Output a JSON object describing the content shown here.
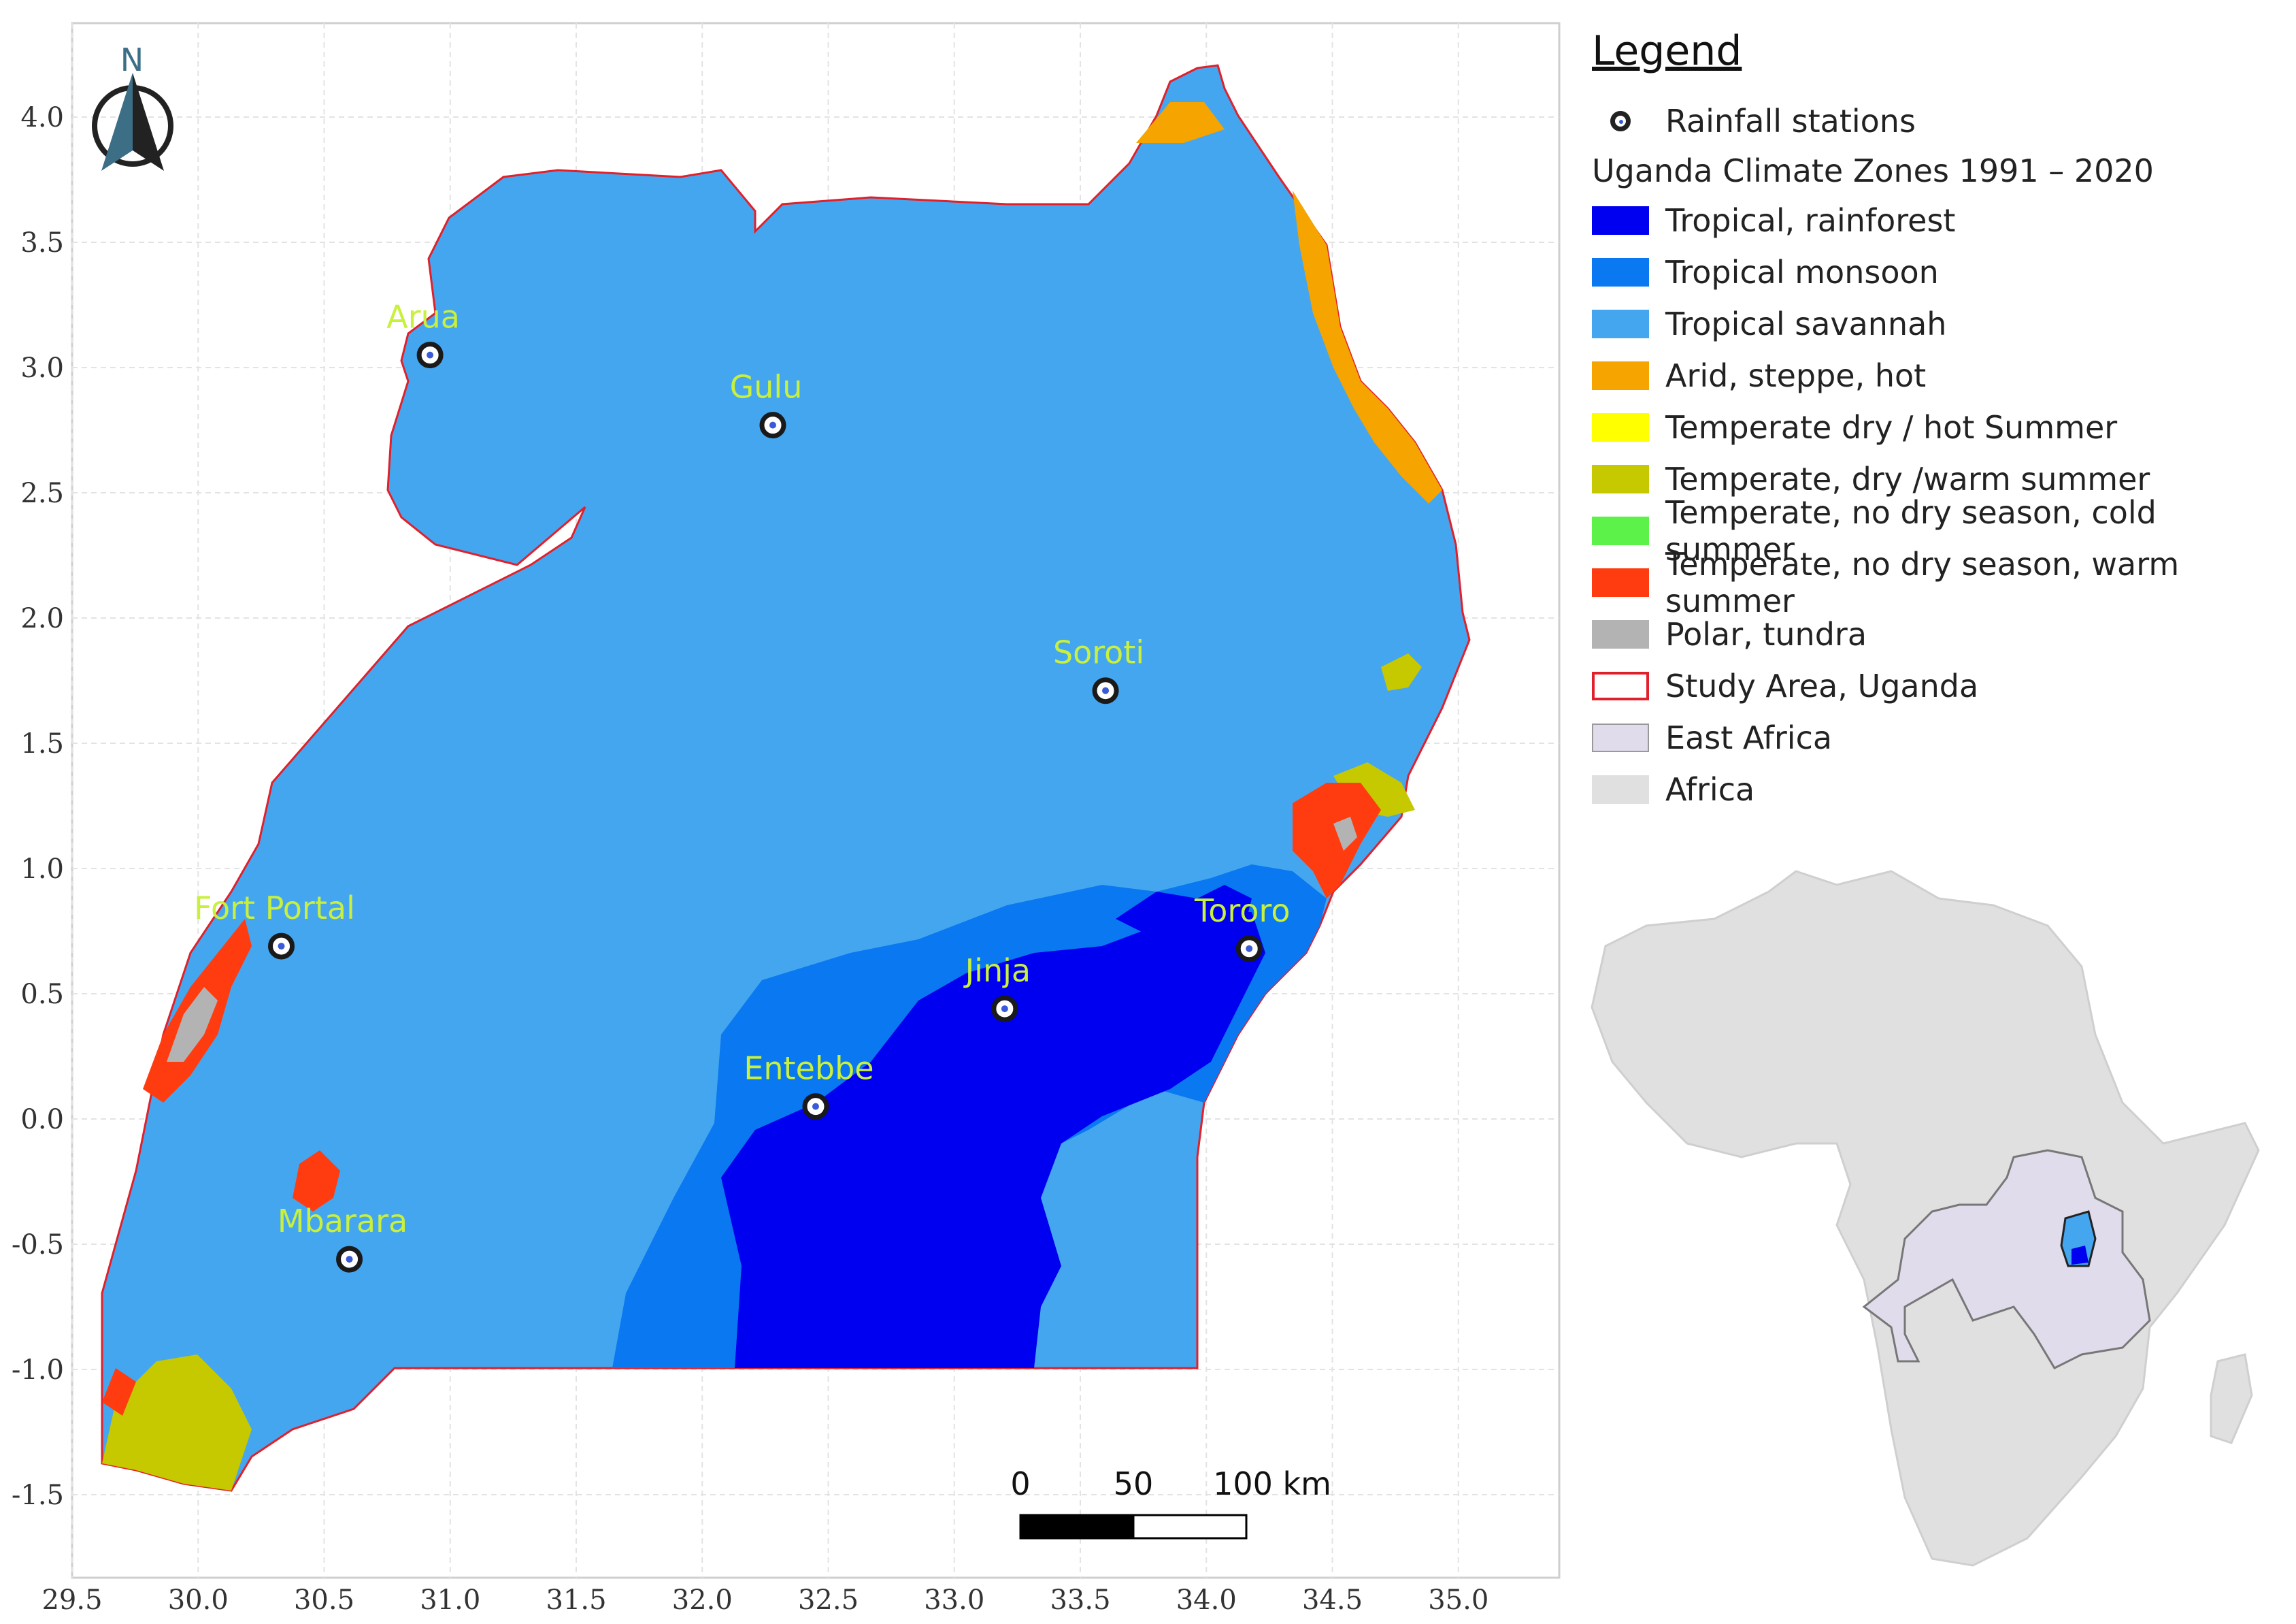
{
  "map": {
    "north_arrow_label": "N",
    "x_axis_ticks": [
      "29.5",
      "30.0",
      "30.5",
      "31.0",
      "31.5",
      "32.0",
      "32.5",
      "33.0",
      "33.5",
      "34.0",
      "34.5",
      "35.0"
    ],
    "y_axis_ticks": [
      "4.0",
      "3.5",
      "3.0",
      "2.5",
      "2.0",
      "1.5",
      "1.0",
      "0.5",
      "0.0",
      "-0.5",
      "-1.0",
      "-1.5"
    ],
    "stations": [
      {
        "name": "Arua",
        "lon": 30.92,
        "lat": 3.05
      },
      {
        "name": "Gulu",
        "lon": 32.28,
        "lat": 2.77
      },
      {
        "name": "Soroti",
        "lon": 33.6,
        "lat": 1.71
      },
      {
        "name": "Fort Portal",
        "lon": 30.33,
        "lat": 0.69
      },
      {
        "name": "Tororo",
        "lon": 34.17,
        "lat": 0.68
      },
      {
        "name": "Jinja",
        "lon": 33.2,
        "lat": 0.44
      },
      {
        "name": "Entebbe",
        "lon": 32.45,
        "lat": 0.05
      },
      {
        "name": "Mbarara",
        "lon": 30.6,
        "lat": -0.56
      }
    ],
    "scale_bar": {
      "labels": [
        "0",
        "50",
        "100 km"
      ]
    }
  },
  "legend": {
    "title": "Legend",
    "stations_label": "Rainfall stations",
    "climate_heading": "Uganda Climate Zones 1991 – 2020",
    "zones": [
      {
        "label": "Tropical, rainforest",
        "color": "#0000f0"
      },
      {
        "label": "Tropical monsoon",
        "color": "#0a78f0"
      },
      {
        "label": "Tropical savannah",
        "color": "#45a6f0"
      },
      {
        "label": "Arid, steppe, hot",
        "color": "#f5a400"
      },
      {
        "label": "Temperate dry / hot Summer",
        "color": "#ffff00"
      },
      {
        "label": "Temperate, dry /warm summer",
        "color": "#c6c800"
      },
      {
        "label": "Temperate, no dry season, cold summer",
        "color": "#5df24a"
      },
      {
        "label": "Temperate, no dry season, warm summer",
        "color": "#ff3c10"
      },
      {
        "label": "Polar, tundra",
        "color": "#b3b3b3"
      }
    ],
    "study_area_label": "Study Area, Uganda",
    "study_area_color": "#e0202a",
    "east_africa_label": "East Africa",
    "east_africa_color": "#e1dcec",
    "africa_label": "Africa",
    "africa_color": "#e0e0e0"
  },
  "colors": {
    "station_label": "#c8f03c",
    "grid": "#e3e3e3"
  }
}
